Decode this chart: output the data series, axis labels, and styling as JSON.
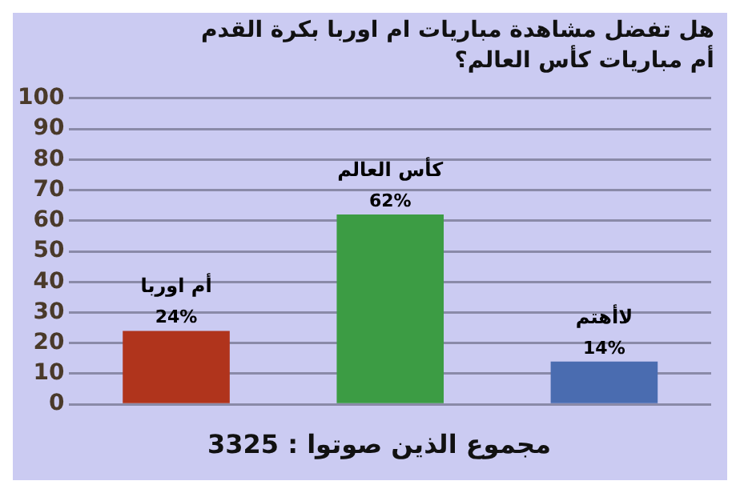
{
  "chart_data": {
    "type": "bar",
    "title": "هل تفضل مشاهدة مباريات ام اوربا بكرة القدم أم مباريات كأس العالم؟",
    "categories": [
      "أم اوربا",
      "كأس العالم",
      "لاأهتم"
    ],
    "values": [
      24,
      62,
      14
    ],
    "value_labels": [
      "24%",
      "62%",
      "14%"
    ],
    "colors": [
      "#b0341c",
      "#3c9c44",
      "#4a6cb0"
    ],
    "ylim": [
      0,
      100
    ],
    "yticks": [
      0,
      10,
      20,
      30,
      40,
      50,
      60,
      70,
      80,
      90,
      100
    ],
    "grid": "y",
    "annotations": [
      "مجموع الذين صوتوا : 3325"
    ]
  }
}
